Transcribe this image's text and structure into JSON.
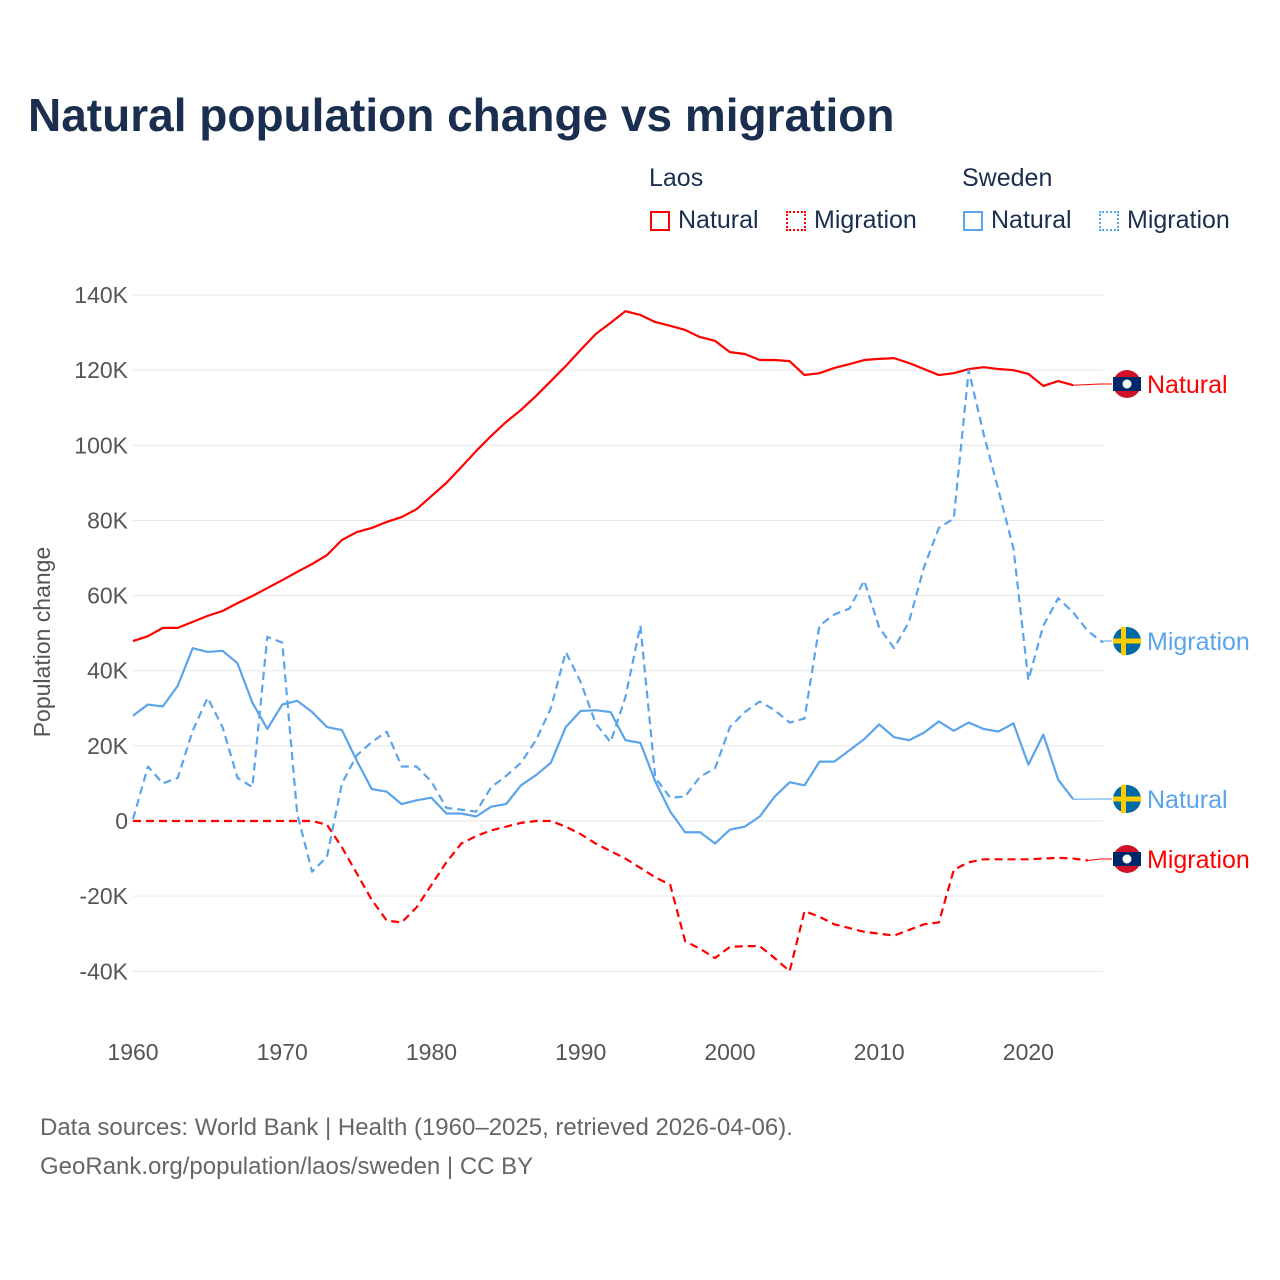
{
  "chart_data": {
    "type": "line",
    "title": "Natural population change vs migration",
    "xlabel": "",
    "ylabel": "Population change",
    "xlim": [
      1960,
      2025
    ],
    "ylim": [
      -40000,
      140000
    ],
    "x_ticks": [
      1960,
      1970,
      1980,
      1990,
      2000,
      2010,
      2020
    ],
    "x_tick_labels": [
      "1960",
      "1970",
      "1980",
      "1990",
      "2000",
      "2010",
      "2020"
    ],
    "y_ticks": [
      -40000,
      -20000,
      0,
      20000,
      40000,
      60000,
      80000,
      100000,
      120000,
      140000
    ],
    "y_tick_labels": [
      "-40K",
      "-20K",
      "0",
      "20K",
      "40K",
      "60K",
      "80K",
      "100K",
      "120K",
      "140K"
    ],
    "grid": true,
    "legend_placement": "top-right",
    "legend_groups": [
      "Laos",
      "Sweden"
    ],
    "x_start": 1960,
    "series": [
      {
        "name": "Natural",
        "country": "Laos",
        "color": "#ff0000",
        "style": "solid",
        "end_label": "Natural",
        "flag": "laos",
        "values": [
          47.9,
          49.2,
          51.4,
          51.4,
          53,
          54.6,
          55.9,
          58,
          59.9,
          62,
          64.1,
          66.3,
          68.4,
          70.8,
          74.8,
          76.9,
          78,
          79.6,
          80.9,
          83,
          86.5,
          90,
          94.2,
          98.5,
          102.5,
          106.2,
          109.4,
          113.1,
          117.1,
          121.1,
          125.4,
          129.6,
          132.6,
          135.7,
          134.7,
          132.8,
          131.8,
          130.7,
          128.8,
          127.8,
          124.8,
          124.3,
          122.7,
          122.7,
          122.4,
          118.7,
          119.2,
          120.6,
          121.6,
          122.7,
          123,
          123.2,
          121.9,
          120.3,
          118.7,
          119.2,
          120.3,
          120.8,
          120.3,
          120,
          119,
          115.8,
          117.1,
          116
        ]
      },
      {
        "name": "Migration",
        "country": "Laos",
        "color": "#ff0000",
        "style": "dashed",
        "end_label": "Migration",
        "flag": "laos",
        "values": [
          0,
          0,
          0,
          0,
          0,
          0,
          0,
          0,
          0,
          0,
          0,
          0,
          0,
          -1,
          -7,
          -14,
          -21,
          -26.5,
          -27,
          -23,
          -17,
          -11,
          -6,
          -4,
          -2.5,
          -1.5,
          -0.5,
          0,
          0,
          -1.5,
          -3.5,
          -6,
          -8,
          -10,
          -12.5,
          -15,
          -17,
          -32,
          -34,
          -36.5,
          -33.5,
          -33.3,
          -33.3,
          -36.5,
          -40,
          -24,
          -25.5,
          -27.5,
          -28.5,
          -29.5,
          -30,
          -30.5,
          -29,
          -27.5,
          -27,
          -13,
          -11,
          -10.2,
          -10.2,
          -10.2,
          -10.2,
          -10,
          -9.8,
          -10,
          -10.5
        ]
      },
      {
        "name": "Natural",
        "country": "Sweden",
        "color": "#5ba4ec",
        "style": "solid",
        "end_label": "Natural",
        "flag": "sweden",
        "values": [
          28,
          31,
          30.5,
          36,
          46,
          45,
          45.3,
          42,
          31.5,
          24.5,
          31,
          32,
          29,
          25,
          24.2,
          16,
          8.5,
          7.8,
          4.5,
          5.5,
          6.2,
          2,
          2,
          1.2,
          3.8,
          4.5,
          9.5,
          12.2,
          15.5,
          25,
          29.3,
          29.5,
          29,
          21.5,
          20.8,
          10.5,
          2.5,
          -3,
          -3,
          -6,
          -2.3,
          -1.5,
          1.2,
          6.5,
          10.3,
          9.5,
          15.8,
          15.8,
          18.8,
          21.8,
          25.7,
          22.3,
          21.5,
          23.5,
          26.5,
          24,
          26.2,
          24.5,
          23.8,
          26,
          15,
          23,
          11,
          5.8
        ]
      },
      {
        "name": "Migration",
        "country": "Sweden",
        "color": "#5ba4ec",
        "style": "dashed",
        "end_label": "Migration",
        "flag": "sweden",
        "values": [
          0.5,
          14.5,
          10,
          11.5,
          24,
          32.8,
          25,
          11.5,
          9,
          49,
          47.5,
          2,
          -13.5,
          -9.5,
          10,
          17.5,
          21,
          23.8,
          14.5,
          14.5,
          10.5,
          3.5,
          3,
          2.5,
          9,
          12,
          15.5,
          21.5,
          30,
          45,
          37,
          26,
          21,
          33,
          52,
          11.5,
          6.2,
          6.5,
          11.8,
          14,
          25,
          29,
          31.8,
          29.5,
          26.2,
          27.3,
          52,
          55,
          56.5,
          64,
          51.5,
          46,
          53,
          67.5,
          78,
          80.5,
          120,
          103,
          88,
          72.5,
          37.5,
          52,
          59.3,
          55.5,
          50.5,
          47.5
        ]
      }
    ],
    "value_unit": "thousands"
  },
  "footer": {
    "line1": "Data sources: World Bank | Health (1960–2025, retrieved 2026-04-06).",
    "line2": "GeoRank.org/population/laos/sweden | CC BY"
  }
}
